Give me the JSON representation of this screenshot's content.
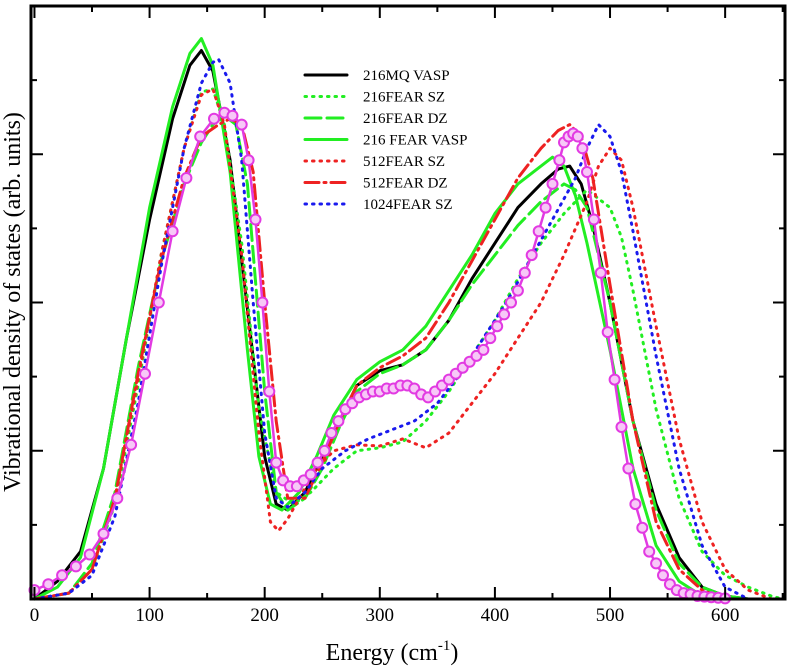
{
  "chart_data": {
    "type": "line",
    "xlabel": "Energy (cm",
    "xlabel_sup": "-1",
    "xlabel_tail": ")",
    "ylabel": "Vibrational density of states (arb. units)",
    "xlim": [
      -3,
      652
    ],
    "ylim": [
      0,
      1.0
    ],
    "xticks": [
      0,
      100,
      200,
      300,
      400,
      500,
      600
    ],
    "xtick_labels": [
      "0",
      "100",
      "200",
      "300",
      "400",
      "500",
      "600"
    ],
    "grid": false,
    "legend_position": "top-center",
    "series": [
      {
        "name": "216MQ VASP",
        "color": "#000000",
        "dash": "solid",
        "x": [
          0,
          20,
          40,
          60,
          80,
          100,
          120,
          135,
          145,
          155,
          170,
          185,
          200,
          210,
          220,
          235,
          250,
          265,
          280,
          300,
          320,
          340,
          360,
          380,
          400,
          420,
          440,
          455,
          465,
          475,
          485,
          500,
          520,
          540,
          560,
          580,
          600,
          620
        ],
        "y": [
          0.0,
          0.03,
          0.08,
          0.22,
          0.44,
          0.64,
          0.81,
          0.9,
          0.925,
          0.89,
          0.74,
          0.49,
          0.24,
          0.16,
          0.15,
          0.18,
          0.24,
          0.3,
          0.36,
          0.385,
          0.395,
          0.42,
          0.47,
          0.54,
          0.6,
          0.66,
          0.7,
          0.725,
          0.73,
          0.7,
          0.63,
          0.5,
          0.3,
          0.16,
          0.07,
          0.02,
          0.005,
          0.0
        ]
      },
      {
        "name": "216FEAR SZ",
        "color": "#22ee22",
        "dash": "dotted",
        "x": [
          0,
          30,
          50,
          70,
          90,
          110,
          130,
          145,
          155,
          165,
          180,
          195,
          210,
          225,
          240,
          260,
          280,
          300,
          320,
          340,
          360,
          380,
          400,
          420,
          440,
          460,
          480,
          500,
          510,
          520,
          540,
          560,
          580,
          600,
          620,
          640,
          650
        ],
        "y": [
          0.0,
          0.01,
          0.05,
          0.16,
          0.36,
          0.58,
          0.76,
          0.855,
          0.86,
          0.8,
          0.6,
          0.32,
          0.18,
          0.16,
          0.18,
          0.22,
          0.25,
          0.255,
          0.265,
          0.3,
          0.35,
          0.41,
          0.47,
          0.54,
          0.6,
          0.65,
          0.69,
          0.66,
          0.61,
          0.52,
          0.32,
          0.17,
          0.08,
          0.04,
          0.02,
          0.005,
          0.0
        ]
      },
      {
        "name": "216FEAR DZ",
        "color": "#22ee22",
        "dash": "longdash",
        "x": [
          0,
          30,
          50,
          70,
          90,
          110,
          130,
          145,
          155,
          165,
          175,
          185,
          200,
          210,
          220,
          235,
          250,
          265,
          280,
          300,
          320,
          340,
          360,
          380,
          400,
          420,
          440,
          460,
          470,
          480,
          500,
          520,
          540,
          560,
          580,
          600,
          620
        ],
        "y": [
          0.0,
          0.01,
          0.06,
          0.18,
          0.39,
          0.57,
          0.7,
          0.77,
          0.8,
          0.815,
          0.8,
          0.7,
          0.35,
          0.18,
          0.15,
          0.17,
          0.22,
          0.29,
          0.35,
          0.38,
          0.395,
          0.42,
          0.47,
          0.53,
          0.58,
          0.63,
          0.67,
          0.7,
          0.69,
          0.66,
          0.5,
          0.3,
          0.15,
          0.06,
          0.02,
          0.005,
          0.0
        ]
      },
      {
        "name": "216 FEAR VASP",
        "color": "#22ee22",
        "dash": "solid",
        "x": [
          0,
          20,
          40,
          60,
          80,
          100,
          120,
          135,
          145,
          155,
          170,
          185,
          195,
          205,
          215,
          230,
          245,
          260,
          280,
          300,
          320,
          340,
          360,
          380,
          400,
          420,
          440,
          450,
          460,
          470,
          480,
          500,
          520,
          540,
          560,
          580,
          600
        ],
        "y": [
          0.0,
          0.02,
          0.07,
          0.22,
          0.44,
          0.66,
          0.83,
          0.92,
          0.945,
          0.9,
          0.72,
          0.42,
          0.24,
          0.16,
          0.15,
          0.18,
          0.24,
          0.31,
          0.37,
          0.4,
          0.42,
          0.46,
          0.52,
          0.58,
          0.65,
          0.7,
          0.73,
          0.745,
          0.73,
          0.68,
          0.6,
          0.42,
          0.22,
          0.09,
          0.03,
          0.005,
          0.0
        ]
      },
      {
        "name": "512FEAR SZ",
        "color": "#ee2222",
        "dash": "dotted",
        "x": [
          0,
          30,
          50,
          70,
          90,
          110,
          130,
          145,
          155,
          165,
          180,
          195,
          205,
          212,
          220,
          230,
          245,
          260,
          280,
          300,
          320,
          340,
          360,
          380,
          400,
          420,
          440,
          460,
          480,
          490,
          500,
          510,
          520,
          540,
          560,
          580,
          600,
          620,
          640
        ],
        "y": [
          0.0,
          0.01,
          0.05,
          0.17,
          0.37,
          0.58,
          0.76,
          0.85,
          0.86,
          0.8,
          0.58,
          0.28,
          0.13,
          0.115,
          0.135,
          0.17,
          0.22,
          0.25,
          0.26,
          0.258,
          0.27,
          0.255,
          0.28,
          0.33,
          0.38,
          0.44,
          0.5,
          0.58,
          0.67,
          0.73,
          0.76,
          0.74,
          0.66,
          0.46,
          0.27,
          0.13,
          0.05,
          0.015,
          0.0
        ]
      },
      {
        "name": "512FEAR DZ",
        "color": "#ee2222",
        "dash": "dashdot",
        "x": [
          0,
          30,
          50,
          70,
          90,
          110,
          130,
          145,
          160,
          170,
          180,
          190,
          200,
          210,
          220,
          235,
          250,
          265,
          280,
          300,
          320,
          340,
          360,
          380,
          400,
          420,
          440,
          455,
          465,
          475,
          485,
          500,
          520,
          540,
          560,
          580,
          600
        ],
        "y": [
          0.0,
          0.01,
          0.05,
          0.17,
          0.38,
          0.57,
          0.71,
          0.78,
          0.8,
          0.81,
          0.8,
          0.72,
          0.5,
          0.3,
          0.17,
          0.17,
          0.23,
          0.3,
          0.36,
          0.39,
          0.41,
          0.44,
          0.5,
          0.57,
          0.64,
          0.71,
          0.76,
          0.79,
          0.8,
          0.78,
          0.71,
          0.53,
          0.3,
          0.13,
          0.05,
          0.015,
          0.0
        ]
      },
      {
        "name": "1024FEAR SZ",
        "color": "#1a1aee",
        "dash": "dotted",
        "x": [
          0,
          30,
          50,
          70,
          90,
          110,
          130,
          145,
          155,
          160,
          170,
          180,
          190,
          200,
          210,
          220,
          235,
          250,
          270,
          290,
          310,
          330,
          350,
          370,
          390,
          410,
          430,
          450,
          470,
          480,
          490,
          500,
          510,
          520,
          540,
          560,
          580,
          600,
          620
        ],
        "y": [
          0.0,
          0.01,
          0.04,
          0.14,
          0.33,
          0.56,
          0.76,
          0.87,
          0.905,
          0.91,
          0.87,
          0.74,
          0.5,
          0.28,
          0.17,
          0.155,
          0.18,
          0.22,
          0.25,
          0.27,
          0.285,
          0.3,
          0.33,
          0.38,
          0.44,
          0.5,
          0.57,
          0.64,
          0.71,
          0.76,
          0.8,
          0.78,
          0.72,
          0.62,
          0.41,
          0.22,
          0.09,
          0.02,
          0.0
        ]
      },
      {
        "name": "",
        "color": "#e23ae2",
        "dash": "solid",
        "markers": true,
        "x": [
          0,
          12,
          24,
          36,
          48,
          60,
          72,
          84,
          96,
          108,
          120,
          132,
          144,
          156,
          165,
          172,
          180,
          186,
          192,
          198,
          204,
          210,
          216,
          222,
          228,
          234,
          240,
          246,
          252,
          258,
          264,
          270,
          276,
          282,
          288,
          294,
          300,
          306,
          312,
          318,
          324,
          330,
          336,
          342,
          348,
          354,
          360,
          366,
          372,
          378,
          384,
          390,
          396,
          402,
          408,
          414,
          420,
          426,
          432,
          438,
          444,
          450,
          456,
          460,
          464,
          468,
          472,
          476,
          480,
          486,
          492,
          498,
          504,
          510,
          516,
          522,
          528,
          534,
          540,
          546,
          552,
          558,
          564,
          570,
          576,
          582,
          588,
          594,
          600
        ],
        "y": [
          0.015,
          0.025,
          0.04,
          0.055,
          0.075,
          0.11,
          0.17,
          0.26,
          0.38,
          0.5,
          0.62,
          0.71,
          0.78,
          0.81,
          0.82,
          0.815,
          0.8,
          0.74,
          0.64,
          0.5,
          0.35,
          0.23,
          0.2,
          0.19,
          0.19,
          0.2,
          0.21,
          0.23,
          0.25,
          0.28,
          0.3,
          0.32,
          0.33,
          0.34,
          0.345,
          0.35,
          0.35,
          0.355,
          0.355,
          0.36,
          0.36,
          0.355,
          0.345,
          0.34,
          0.35,
          0.36,
          0.37,
          0.38,
          0.39,
          0.4,
          0.41,
          0.42,
          0.44,
          0.46,
          0.48,
          0.5,
          0.52,
          0.55,
          0.58,
          0.62,
          0.66,
          0.7,
          0.74,
          0.77,
          0.78,
          0.785,
          0.78,
          0.76,
          0.72,
          0.64,
          0.55,
          0.45,
          0.37,
          0.29,
          0.22,
          0.16,
          0.12,
          0.08,
          0.06,
          0.04,
          0.025,
          0.015,
          0.01,
          0.008,
          0.005,
          0.004,
          0.003,
          0.002,
          0.001
        ]
      }
    ]
  }
}
